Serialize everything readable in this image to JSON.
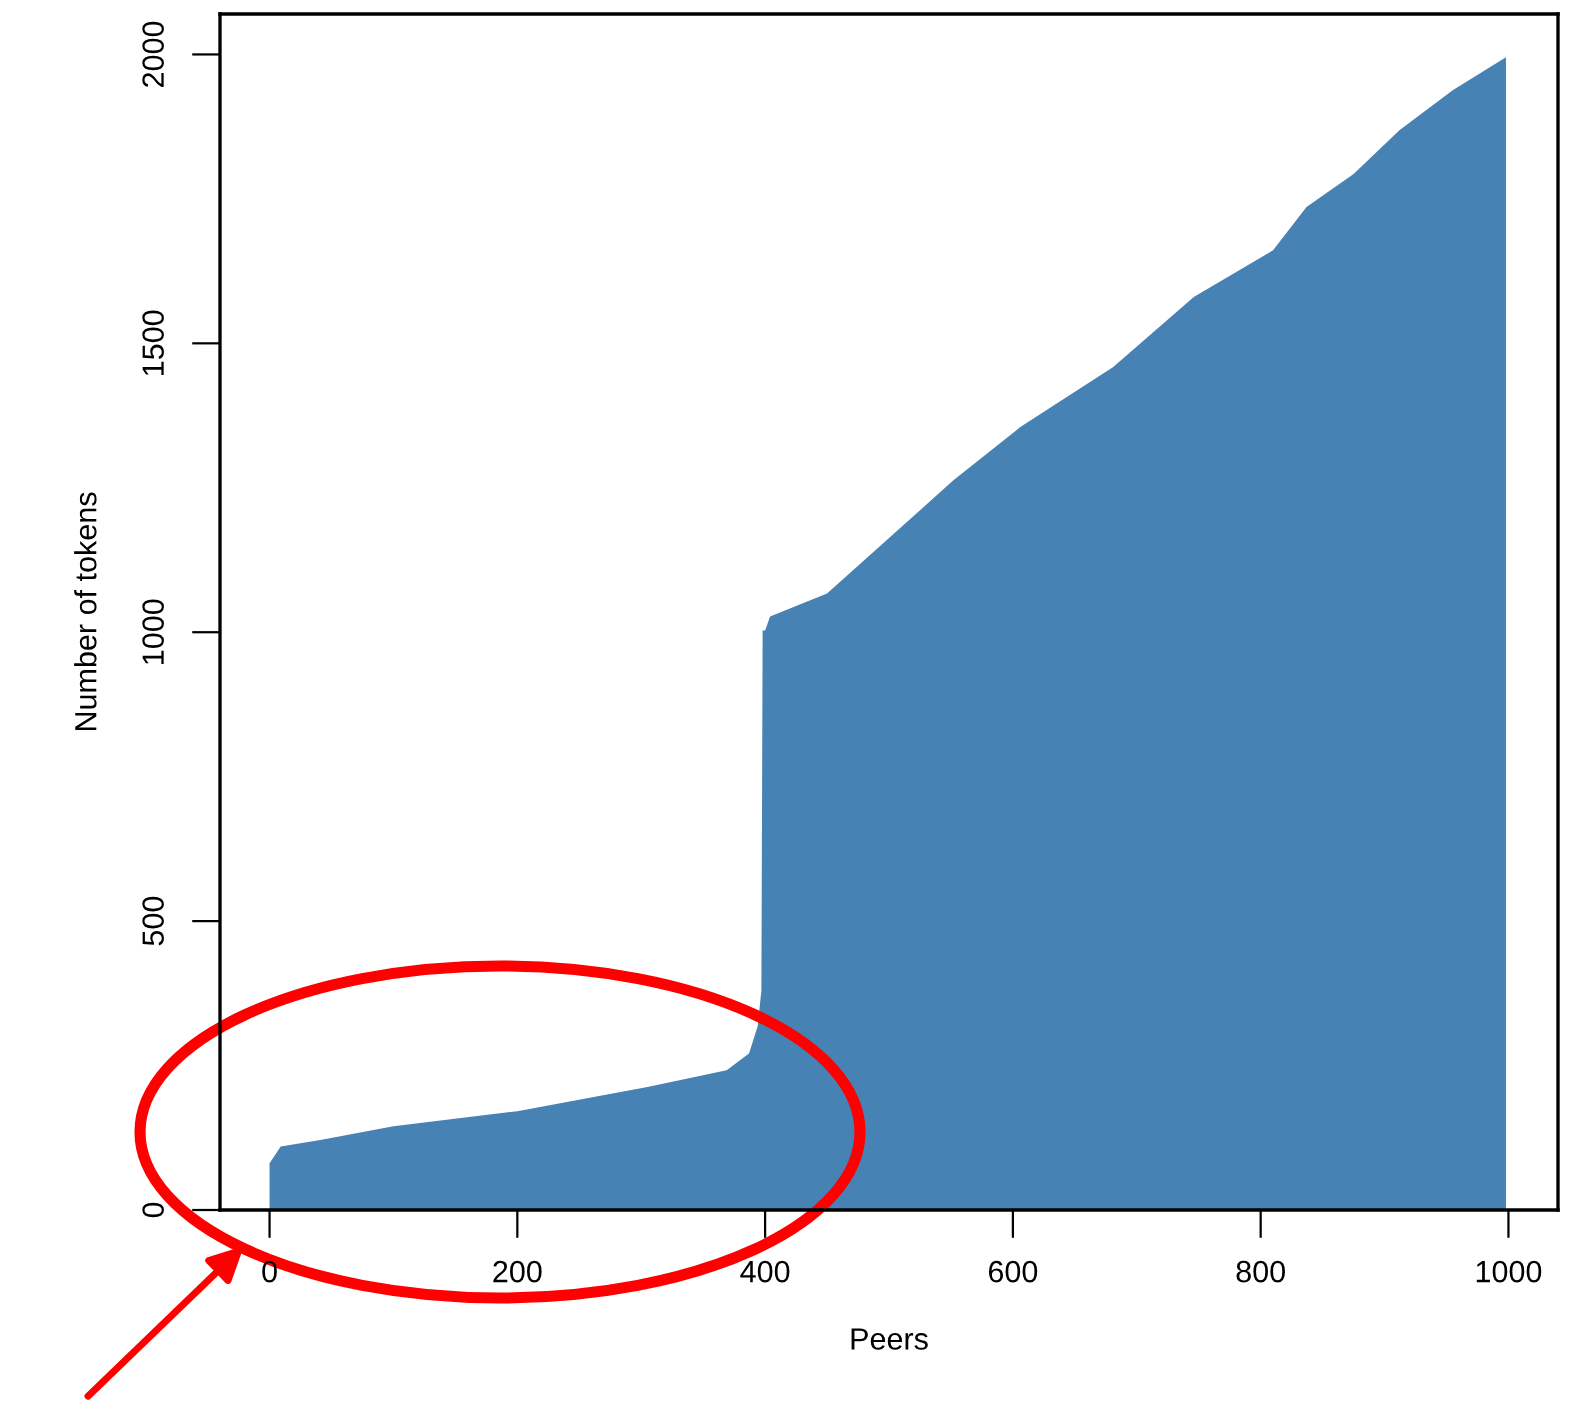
{
  "chart_data": {
    "type": "area",
    "xlabel": "Peers",
    "ylabel": "Number of tokens",
    "series": [
      {
        "color": "#4682b4",
        "x": [
          0,
          9,
          41,
          100,
          200,
          305,
          369,
          387,
          394,
          397,
          398,
          400,
          404,
          450,
          498,
          552,
          606,
          681,
          746,
          810,
          837,
          875,
          912,
          955,
          998
        ],
        "values": [
          81,
          110,
          121,
          145,
          171,
          213,
          242,
          271,
          318,
          380,
          1003,
          1003,
          1027,
          1067,
          1159,
          1263,
          1355,
          1459,
          1580,
          1661,
          1736,
          1793,
          1869,
          1938,
          1995
        ]
      }
    ],
    "xlim": [
      -40,
      1040
    ],
    "ylim": [
      0,
      2070
    ],
    "xticks": [
      0,
      200,
      400,
      600,
      800,
      1000
    ],
    "yticks": [
      0,
      500,
      1000,
      1500,
      2000
    ],
    "grid": false,
    "legend": false
  }
}
